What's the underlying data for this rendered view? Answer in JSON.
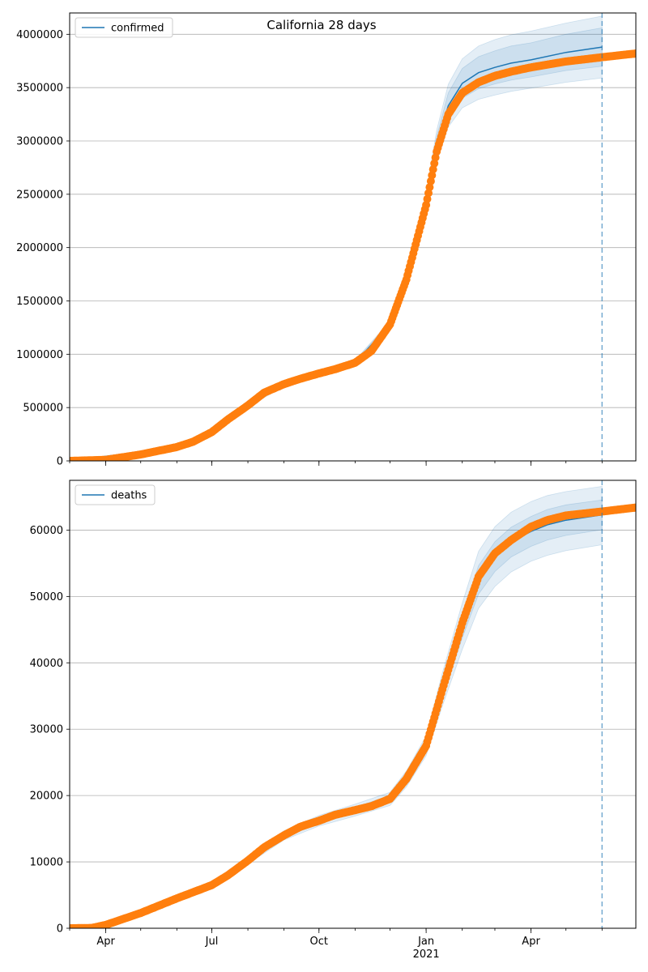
{
  "title": "California 28 days",
  "colors": {
    "model": "#1f77b4",
    "observed": "#ff7f0e",
    "band": "#1f77b4",
    "grid": "#b0b0b0",
    "cutoff": "#1f77b4"
  },
  "x_axis": {
    "type": "date",
    "range": [
      "2020-03-01",
      "2021-06-30"
    ],
    "major_ticks": [
      {
        "date": "2020-04-01",
        "label": "Apr"
      },
      {
        "date": "2020-07-01",
        "label": "Jul"
      },
      {
        "date": "2020-10-01",
        "label": "Oct"
      },
      {
        "date": "2021-01-01",
        "label": "Jan"
      },
      {
        "date": "2021-04-01",
        "label": "Apr"
      }
    ],
    "year_label": {
      "date": "2021-01-01",
      "label": "2021"
    },
    "cutoff_date": "2021-06-01"
  },
  "chart_data": [
    {
      "type": "line",
      "legend": "confirmed",
      "legend_position": "top-left",
      "grid": "y-only",
      "ylim": [
        0,
        4200000
      ],
      "yticks": [
        0,
        500000,
        1000000,
        1500000,
        2000000,
        2500000,
        3000000,
        3500000,
        4000000
      ],
      "ytick_labels": [
        "0",
        "500000",
        "1000000",
        "1500000",
        "2000000",
        "2500000",
        "3000000",
        "3500000",
        "4000000"
      ],
      "observed": {
        "x": [
          "2020-03-01",
          "2020-04-01",
          "2020-05-01",
          "2020-06-01",
          "2020-06-15",
          "2020-07-01",
          "2020-07-15",
          "2020-08-01",
          "2020-08-15",
          "2020-09-01",
          "2020-09-15",
          "2020-10-01",
          "2020-10-15",
          "2020-11-01",
          "2020-11-15",
          "2020-12-01",
          "2020-12-15",
          "2021-01-01",
          "2021-01-10",
          "2021-01-20",
          "2021-02-01",
          "2021-02-15",
          "2021-03-01",
          "2021-03-15",
          "2021-04-01",
          "2021-05-01",
          "2021-06-01",
          "2021-06-30"
        ],
        "y": [
          0,
          10000,
          60000,
          130000,
          180000,
          270000,
          390000,
          520000,
          640000,
          720000,
          770000,
          820000,
          860000,
          920000,
          1030000,
          1280000,
          1700000,
          2400000,
          2900000,
          3250000,
          3450000,
          3550000,
          3610000,
          3650000,
          3690000,
          3745000,
          3785000,
          3820000
        ]
      },
      "model": {
        "x": [
          "2020-03-01",
          "2020-06-01",
          "2020-07-01",
          "2020-08-01",
          "2020-09-01",
          "2020-10-01",
          "2020-11-01",
          "2020-12-01",
          "2020-12-15",
          "2021-01-01",
          "2021-01-10",
          "2021-01-20",
          "2021-02-01",
          "2021-02-15",
          "2021-03-01",
          "2021-03-15",
          "2021-04-01",
          "2021-05-01",
          "2021-06-01"
        ],
        "y": [
          0,
          130000,
          270000,
          520000,
          720000,
          820000,
          920000,
          1280000,
          1700000,
          2420000,
          2950000,
          3330000,
          3540000,
          3640000,
          3690000,
          3730000,
          3760000,
          3830000,
          3880000
        ]
      },
      "bands": [
        {
          "lower": [
            0,
            128000,
            265000,
            505000,
            700000,
            795000,
            895000,
            1250000,
            1660000,
            2330000,
            2800000,
            3130000,
            3310000,
            3390000,
            3430000,
            3465000,
            3495000,
            3550000,
            3590000
          ],
          "upper": [
            0,
            132000,
            275000,
            535000,
            740000,
            845000,
            945000,
            1310000,
            1740000,
            2510000,
            3100000,
            3530000,
            3770000,
            3890000,
            3950000,
            3995000,
            4030000,
            4105000,
            4170000
          ]
        },
        {
          "lower": [
            0,
            129000,
            267000,
            510000,
            708000,
            804000,
            904000,
            1262000,
            1676000,
            2366000,
            2860000,
            3210000,
            3400000,
            3490000,
            3535000,
            3570000,
            3600000,
            3660000,
            3700000
          ],
          "upper": [
            0,
            131000,
            273000,
            530000,
            732000,
            836000,
            936000,
            1298000,
            1724000,
            2474000,
            3040000,
            3450000,
            3680000,
            3790000,
            3845000,
            3890000,
            3920000,
            4000000,
            4060000
          ]
        }
      ]
    },
    {
      "type": "line",
      "legend": "deaths",
      "legend_position": "top-left",
      "grid": "y-only",
      "ylim": [
        0,
        67500
      ],
      "yticks": [
        0,
        10000,
        20000,
        30000,
        40000,
        50000,
        60000
      ],
      "ytick_labels": [
        "0",
        "10000",
        "20000",
        "30000",
        "40000",
        "50000",
        "60000"
      ],
      "observed": {
        "x": [
          "2020-03-01",
          "2020-03-20",
          "2020-04-01",
          "2020-05-01",
          "2020-06-01",
          "2020-07-01",
          "2020-07-15",
          "2020-08-01",
          "2020-08-15",
          "2020-09-01",
          "2020-09-15",
          "2020-10-01",
          "2020-10-15",
          "2020-11-01",
          "2020-11-15",
          "2020-12-01",
          "2020-12-15",
          "2021-01-01",
          "2021-01-15",
          "2021-02-01",
          "2021-02-15",
          "2021-03-01",
          "2021-03-15",
          "2021-04-01",
          "2021-04-15",
          "2021-05-01",
          "2021-06-01",
          "2021-06-30"
        ],
        "y": [
          0,
          50,
          500,
          2300,
          4500,
          6500,
          8000,
          10200,
          12200,
          14000,
          15300,
          16200,
          17100,
          17800,
          18400,
          19500,
          22500,
          27500,
          36000,
          46000,
          53000,
          56500,
          58500,
          60500,
          61500,
          62200,
          62800,
          63400
        ]
      },
      "model": {
        "x": [
          "2020-03-01",
          "2020-04-01",
          "2020-05-01",
          "2020-06-01",
          "2020-07-01",
          "2020-08-01",
          "2020-09-01",
          "2020-10-01",
          "2020-11-01",
          "2020-12-01",
          "2020-12-15",
          "2021-01-01",
          "2021-01-15",
          "2021-02-01",
          "2021-02-15",
          "2021-03-01",
          "2021-03-15",
          "2021-04-01",
          "2021-04-15",
          "2021-05-01",
          "2021-06-01"
        ],
        "y": [
          0,
          500,
          2300,
          4500,
          6500,
          10200,
          14000,
          16200,
          17800,
          19500,
          22500,
          27500,
          36000,
          45500,
          52500,
          56000,
          58200,
          59800,
          60800,
          61500,
          62300
        ]
      },
      "bands": [
        {
          "lower": [
            0,
            480,
            2200,
            4300,
            6200,
            9700,
            13300,
            15400,
            16900,
            18500,
            21300,
            26000,
            33500,
            42000,
            48200,
            51500,
            53700,
            55300,
            56200,
            56900,
            57800
          ],
          "upper": [
            0,
            520,
            2400,
            4700,
            6800,
            10700,
            14700,
            17000,
            18700,
            20500,
            23700,
            29000,
            38500,
            49000,
            56800,
            60500,
            62700,
            64300,
            65200,
            65800,
            66600
          ]
        },
        {
          "lower": [
            0,
            490,
            2250,
            4400,
            6350,
            9950,
            13650,
            15800,
            17350,
            19000,
            21900,
            26750,
            34750,
            43750,
            50350,
            53750,
            55950,
            57550,
            58500,
            59200,
            60050
          ],
          "upper": [
            0,
            510,
            2350,
            4600,
            6650,
            10450,
            14350,
            16600,
            18250,
            20000,
            23100,
            28250,
            37250,
            47250,
            54650,
            58250,
            60450,
            62050,
            63100,
            63800,
            64550
          ]
        }
      ]
    }
  ]
}
